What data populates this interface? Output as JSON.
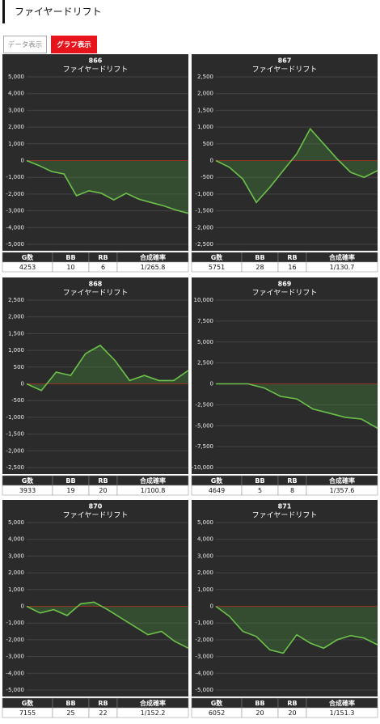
{
  "header": {
    "title": "ファイヤードリフト"
  },
  "tabs": [
    "データ表示",
    "グラフ表示"
  ],
  "table_columns": [
    "G数",
    "BB",
    "RB",
    "合成確率"
  ],
  "tables": [
    [
      4253,
      10,
      6,
      "1/265.8"
    ],
    [
      5751,
      28,
      16,
      "1/130.7"
    ],
    [
      3933,
      19,
      20,
      "1/100.8"
    ],
    [
      4649,
      5,
      8,
      "1/357.6"
    ],
    [
      7155,
      25,
      22,
      "1/152.2"
    ],
    [
      6052,
      20,
      20,
      "1/151.3"
    ]
  ],
  "chart_data": [
    {
      "type": "line",
      "title": "866",
      "subtitle": "ファイヤードリフト",
      "color": "#6cc24a",
      "grid": true,
      "ylim": [
        -5000,
        5000
      ],
      "yticks": [
        {
          "value": 5000,
          "label": "5,000"
        },
        {
          "value": 4000,
          "label": "4,000"
        },
        {
          "value": 3000,
          "label": "3,000"
        },
        {
          "value": 2000,
          "label": "2,000"
        },
        {
          "value": 1000,
          "label": "1,000"
        },
        0,
        {
          "value": -1000,
          "label": "-1,000"
        },
        {
          "value": -2000,
          "label": "-2,000"
        },
        {
          "value": -3000,
          "label": "-3,000"
        },
        {
          "value": -4000,
          "label": "-4,000"
        },
        {
          "value": -5000,
          "label": "-5,000"
        }
      ],
      "values": [
        0,
        -300,
        -650,
        -800,
        -2100,
        -1800,
        -1950,
        -2350,
        -1950,
        -2300,
        -2500,
        -2700,
        -2950,
        -3150
      ]
    },
    {
      "type": "line",
      "title": "867",
      "subtitle": "ファイヤードリフト",
      "color": "#6cc24a",
      "grid": true,
      "ylim": [
        -2500,
        2500
      ],
      "yticks": [
        {
          "value": 2500,
          "label": "2,500"
        },
        {
          "value": 2000,
          "label": "2,000"
        },
        {
          "value": 1500,
          "label": "1,500"
        },
        {
          "value": 1000,
          "label": "1,000"
        },
        500,
        0,
        -500,
        {
          "value": -1000,
          "label": "-1,000"
        },
        {
          "value": -1500,
          "label": "-1,500"
        },
        {
          "value": -2000,
          "label": "-2,000"
        },
        {
          "value": -2500,
          "label": "-2,500"
        }
      ],
      "values": [
        0,
        -200,
        -550,
        -1250,
        -800,
        -300,
        200,
        950,
        500,
        50,
        -350,
        -500,
        -300
      ]
    },
    {
      "type": "line",
      "title": "868",
      "subtitle": "ファイヤードリフト",
      "color": "#6cc24a",
      "grid": true,
      "ylim": [
        -2500,
        2500
      ],
      "yticks": [
        {
          "value": 2500,
          "label": "2,500"
        },
        {
          "value": 2000,
          "label": "2,000"
        },
        {
          "value": 1500,
          "label": "1,500"
        },
        {
          "value": 1000,
          "label": "1,000"
        },
        500,
        0,
        -500,
        {
          "value": -1000,
          "label": "-1,000"
        },
        {
          "value": -1500,
          "label": "-1,500"
        },
        {
          "value": -2000,
          "label": "-2,000"
        },
        {
          "value": -2500,
          "label": "-2,500"
        }
      ],
      "values": [
        0,
        -200,
        350,
        250,
        900,
        1150,
        700,
        100,
        250,
        100,
        100,
        400
      ]
    },
    {
      "type": "line",
      "title": "869",
      "subtitle": "ファイヤードリフト",
      "color": "#6cc24a",
      "grid": true,
      "ylim": [
        -10000,
        10000
      ],
      "yticks": [
        {
          "value": 10000,
          "label": "10,000"
        },
        {
          "value": 7500,
          "label": "7,500"
        },
        {
          "value": 5000,
          "label": "5,000"
        },
        {
          "value": 2500,
          "label": "2,500"
        },
        0,
        {
          "value": -2500,
          "label": "-2,500"
        },
        {
          "value": -5000,
          "label": "-5,000"
        },
        {
          "value": -7500,
          "label": "-7,500"
        },
        {
          "value": -10000,
          "label": "-10,000"
        }
      ],
      "values": [
        0,
        0,
        0,
        -500,
        -1500,
        -1800,
        -3000,
        -3500,
        -4000,
        -4200,
        -5300
      ]
    },
    {
      "type": "line",
      "title": "870",
      "subtitle": "ファイヤードリフト",
      "color": "#6cc24a",
      "grid": true,
      "ylim": [
        -5000,
        5000
      ],
      "yticks": [
        {
          "value": 5000,
          "label": "5,000"
        },
        {
          "value": 4000,
          "label": "4,000"
        },
        {
          "value": 3000,
          "label": "3,000"
        },
        {
          "value": 2000,
          "label": "2,000"
        },
        {
          "value": 1000,
          "label": "1,000"
        },
        0,
        {
          "value": -1000,
          "label": "-1,000"
        },
        {
          "value": -2000,
          "label": "-2,000"
        },
        {
          "value": -3000,
          "label": "-3,000"
        },
        {
          "value": -4000,
          "label": "-4,000"
        },
        {
          "value": -5000,
          "label": "-5,000"
        }
      ],
      "values": [
        0,
        -400,
        -200,
        -550,
        150,
        250,
        -200,
        -700,
        -1200,
        -1700,
        -1500,
        -2100,
        -2500
      ]
    },
    {
      "type": "line",
      "title": "871",
      "subtitle": "ファイヤードリフト",
      "color": "#6cc24a",
      "grid": true,
      "ylim": [
        -5000,
        5000
      ],
      "yticks": [
        {
          "value": 5000,
          "label": "5,000"
        },
        {
          "value": 4000,
          "label": "4,000"
        },
        {
          "value": 3000,
          "label": "3,000"
        },
        {
          "value": 2000,
          "label": "2,000"
        },
        {
          "value": 1000,
          "label": "1,000"
        },
        0,
        {
          "value": -1000,
          "label": "-1,000"
        },
        {
          "value": -2000,
          "label": "-2,000"
        },
        {
          "value": -3000,
          "label": "-3,000"
        },
        {
          "value": -4000,
          "label": "-4,000"
        },
        {
          "value": -5000,
          "label": "-5,000"
        }
      ],
      "values": [
        0,
        -600,
        -1500,
        -1800,
        -2600,
        -2800,
        -1700,
        -2200,
        -2500,
        -2000,
        -1750,
        -1900,
        -2300
      ]
    }
  ]
}
